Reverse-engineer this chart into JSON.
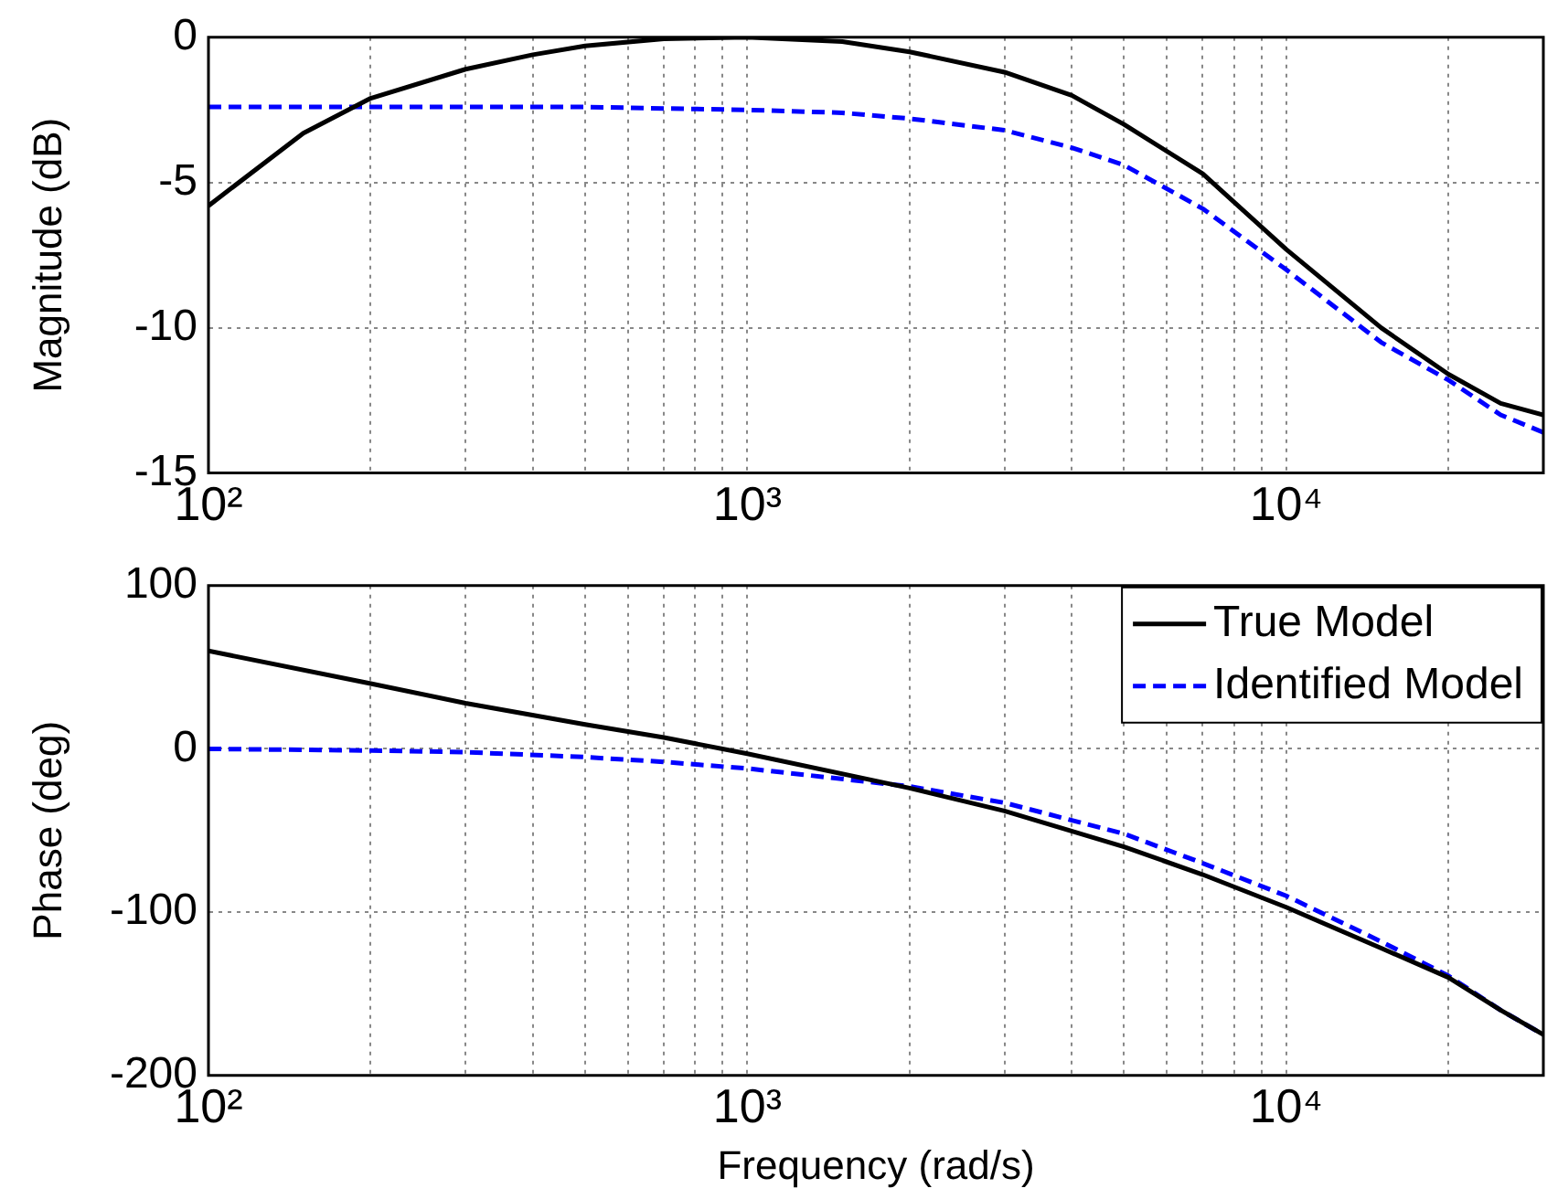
{
  "chart_data": [
    {
      "type": "line",
      "ylabel": "Magnitude (dB)",
      "log": "x",
      "grid": true,
      "marker": "none",
      "legend": false,
      "xlim": [
        100,
        30000
      ],
      "xticks": [
        {
          "value": 100,
          "label": "10²"
        },
        {
          "value": 200,
          "label": null
        },
        {
          "value": 300,
          "label": null
        },
        {
          "value": 400,
          "label": null
        },
        {
          "value": 500,
          "label": null
        },
        {
          "value": 600,
          "label": null
        },
        {
          "value": 700,
          "label": null
        },
        {
          "value": 800,
          "label": null
        },
        {
          "value": 900,
          "label": null
        },
        {
          "value": 1000,
          "label": "10³"
        },
        {
          "value": 2000,
          "label": null
        },
        {
          "value": 3000,
          "label": null
        },
        {
          "value": 4000,
          "label": null
        },
        {
          "value": 5000,
          "label": null
        },
        {
          "value": 6000,
          "label": null
        },
        {
          "value": 7000,
          "label": null
        },
        {
          "value": 8000,
          "label": null
        },
        {
          "value": 9000,
          "label": null
        },
        {
          "value": 10000,
          "label": "10⁴"
        },
        {
          "value": 20000,
          "label": null
        }
      ],
      "ylim": [
        -15,
        0
      ],
      "yticks": [
        -15,
        -10,
        -5,
        0
      ],
      "series": [
        {
          "color": "#000000",
          "line_style": "solid",
          "x": [
            100,
            150,
            200,
            300,
            400,
            500,
            700,
            1000,
            1500,
            2000,
            3000,
            4000,
            5000,
            7000,
            10000,
            15000,
            20000,
            25000,
            30000
          ],
          "values": [
            -5.8,
            -3.3,
            -2.1,
            -1.1,
            -0.6,
            -0.3,
            -0.05,
            0,
            -0.15,
            -0.5,
            -1.2,
            -2.0,
            -3.0,
            -4.7,
            -7.3,
            -10.0,
            -11.6,
            -12.6,
            -13.0
          ]
        },
        {
          "color": "#0000ff",
          "line_style": "dashed",
          "x": [
            100,
            200,
            500,
            1000,
            1500,
            2000,
            3000,
            4000,
            5000,
            7000,
            10000,
            15000,
            20000,
            25000,
            30000
          ],
          "values": [
            -2.4,
            -2.4,
            -2.4,
            -2.5,
            -2.6,
            -2.8,
            -3.2,
            -3.8,
            -4.4,
            -5.9,
            -8.0,
            -10.5,
            -11.8,
            -13.0,
            -13.6
          ]
        }
      ]
    },
    {
      "type": "line",
      "xlabel": "Frequency (rad/s)",
      "ylabel": "Phase (deg)",
      "log": "x",
      "grid": true,
      "marker": "none",
      "legend": "top right",
      "xlim": [
        100,
        30000
      ],
      "xticks": [
        {
          "value": 100,
          "label": "10²"
        },
        {
          "value": 200,
          "label": null
        },
        {
          "value": 300,
          "label": null
        },
        {
          "value": 400,
          "label": null
        },
        {
          "value": 500,
          "label": null
        },
        {
          "value": 600,
          "label": null
        },
        {
          "value": 700,
          "label": null
        },
        {
          "value": 800,
          "label": null
        },
        {
          "value": 900,
          "label": null
        },
        {
          "value": 1000,
          "label": "10³"
        },
        {
          "value": 2000,
          "label": null
        },
        {
          "value": 3000,
          "label": null
        },
        {
          "value": 4000,
          "label": null
        },
        {
          "value": 5000,
          "label": null
        },
        {
          "value": 6000,
          "label": null
        },
        {
          "value": 7000,
          "label": null
        },
        {
          "value": 8000,
          "label": null
        },
        {
          "value": 9000,
          "label": null
        },
        {
          "value": 10000,
          "label": "10⁴"
        },
        {
          "value": 20000,
          "label": null
        }
      ],
      "ylim": [
        -200,
        100
      ],
      "yticks": [
        -200,
        -100,
        0,
        100
      ],
      "series": [
        {
          "name": "True Model",
          "color": "#000000",
          "line_style": "solid",
          "x": [
            100,
            200,
            300,
            500,
            700,
            1000,
            2000,
            3000,
            5000,
            7000,
            10000,
            15000,
            20000,
            25000,
            30000
          ],
          "values": [
            60,
            40,
            28,
            15,
            7,
            -3,
            -24,
            -38,
            -60,
            -77,
            -97,
            -122,
            -140,
            -160,
            -175
          ]
        },
        {
          "name": "Identified Model",
          "color": "#0000ff",
          "line_style": "dashed",
          "x": [
            100,
            200,
            300,
            500,
            700,
            1000,
            2000,
            3000,
            5000,
            7000,
            10000,
            15000,
            20000,
            25000,
            30000
          ],
          "values": [
            0,
            -1,
            -2,
            -5,
            -8,
            -12,
            -23,
            -33,
            -52,
            -70,
            -90,
            -118,
            -139,
            -160,
            -175
          ]
        }
      ]
    }
  ]
}
